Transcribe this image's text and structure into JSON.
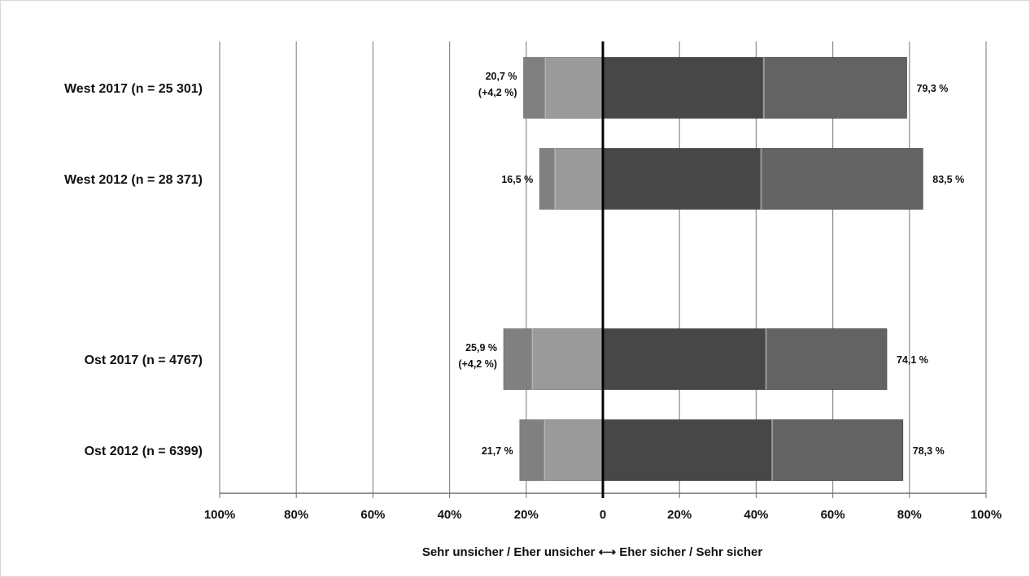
{
  "chart_data": {
    "type": "bar",
    "orientation": "horizontal",
    "stacked": true,
    "diverging": true,
    "categories": [
      "West 2017 (n = 25 301)",
      "West 2012 (n = 28 371)",
      "Ost 2017 (n = 4767)",
      "Ost 2012 (n = 6399)"
    ],
    "series": [
      {
        "side": "negative",
        "values": [
          5.7,
          4.0,
          7.5,
          6.5
        ]
      },
      {
        "side": "negative",
        "values": [
          15.0,
          12.5,
          18.4,
          15.2
        ]
      },
      {
        "side": "positive",
        "values": [
          42.0,
          41.3,
          42.6,
          44.2
        ]
      },
      {
        "side": "positive",
        "values": [
          37.3,
          42.2,
          31.5,
          34.1
        ]
      }
    ],
    "negative_labels": [
      [
        "20,7 %",
        "(+4,2  %)"
      ],
      [
        "16,5 %"
      ],
      [
        "25,9 %",
        "(+4,2  %)"
      ],
      [
        "21,7 %"
      ]
    ],
    "positive_labels": [
      "79,3 %",
      "83,5 %",
      "74,1 %",
      "78,3 %"
    ],
    "xlim": [
      -100,
      100
    ],
    "x_ticks": [
      -100,
      -80,
      -60,
      -40,
      -20,
      0,
      20,
      40,
      60,
      80,
      100
    ],
    "x_tick_labels": [
      "100%",
      "80%",
      "60%",
      "40%",
      "20%",
      "0",
      "20%",
      "40%",
      "60%",
      "80%",
      "100%"
    ],
    "xlabel": "Sehr unsicher / Eher unsicher ⟷ Eher sicher / Sehr sicher",
    "grid": true,
    "colors": {
      "negative_outer": "#808080",
      "negative_inner": "#9a9a9a",
      "positive_inner": "#474747",
      "positive_outer": "#636363",
      "gridline": "#8c8c8c",
      "zero_line": "#000000"
    }
  }
}
